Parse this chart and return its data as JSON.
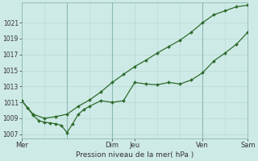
{
  "bg_color": "#ceeae6",
  "grid_color_major": "#b8d8d4",
  "grid_color_minor": "#d0ebe8",
  "line_color": "#2d6b2d",
  "marker_color": "#2d6b2d",
  "xlim": [
    0,
    240
  ],
  "ylim": [
    1006.5,
    1023.5
  ],
  "yticks": [
    1007,
    1009,
    1011,
    1013,
    1015,
    1017,
    1019,
    1021
  ],
  "xlabel": "Pression niveau de la mer( hPa )",
  "day_vlines": [
    48,
    96,
    192
  ],
  "xtick_positions": [
    0,
    96,
    120,
    192,
    240
  ],
  "xtick_labels": [
    "Mer",
    "Dim",
    "Jeu",
    "Ven",
    "Sam"
  ],
  "lower_x": [
    0,
    6,
    12,
    18,
    24,
    30,
    36,
    42,
    48,
    54,
    60,
    66,
    72,
    84,
    96,
    108,
    120,
    132,
    144,
    156,
    168,
    180,
    192,
    204,
    216,
    228,
    240
  ],
  "lower_y": [
    1011.2,
    1010.3,
    1009.4,
    1008.7,
    1008.5,
    1008.4,
    1008.3,
    1008.1,
    1007.2,
    1008.3,
    1009.5,
    1010.1,
    1010.5,
    1011.2,
    1011.0,
    1011.2,
    1013.5,
    1013.3,
    1013.2,
    1013.5,
    1013.3,
    1013.8,
    1014.7,
    1016.2,
    1017.2,
    1018.3,
    1019.8
  ],
  "upper_x": [
    0,
    12,
    24,
    36,
    48,
    60,
    72,
    84,
    96,
    108,
    120,
    132,
    144,
    156,
    168,
    180,
    192,
    204,
    216,
    228,
    240
  ],
  "upper_y": [
    1011.2,
    1009.5,
    1009.0,
    1009.2,
    1009.5,
    1010.5,
    1011.3,
    1012.3,
    1013.5,
    1014.5,
    1015.5,
    1016.3,
    1017.2,
    1018.0,
    1018.8,
    1019.8,
    1021.0,
    1022.0,
    1022.5,
    1023.0,
    1023.2
  ]
}
